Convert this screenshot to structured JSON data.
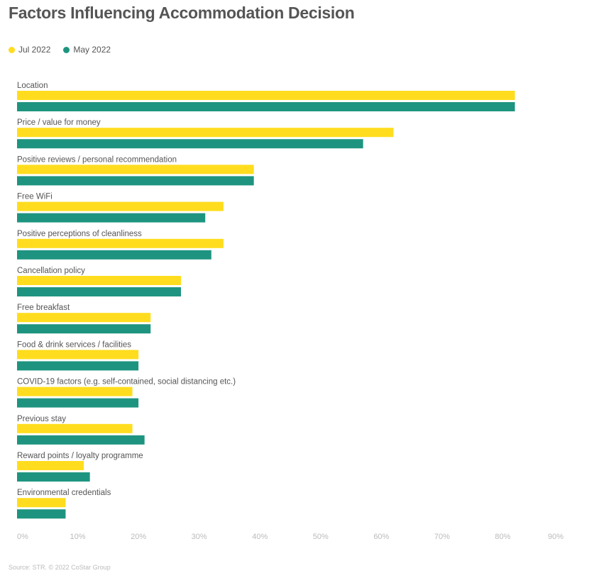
{
  "chart_data": {
    "type": "bar",
    "orientation": "horizontal",
    "title": "Factors Influencing Accommodation Decision",
    "categories": [
      "Location",
      "Price / value for money",
      "Positive reviews / personal recommendation",
      "Free WiFi",
      "Positive perceptions of cleanliness",
      "Cancellation policy",
      "Free breakfast",
      "Food & drink services / facilities",
      "COVID-19 factors (e.g. self-contained, social distancing etc.)",
      "Previous stay",
      "Reward points / loyalty programme",
      "Environmental credentials"
    ],
    "series": [
      {
        "name": "Jul 2022",
        "color": "#FFDD1E",
        "values": [
          82,
          62,
          39,
          34,
          34,
          27,
          22,
          20,
          19,
          19,
          11,
          8
        ]
      },
      {
        "name": "May 2022",
        "color": "#1E9480",
        "values": [
          82,
          57,
          39,
          31,
          32,
          27,
          22,
          20,
          20,
          21,
          12,
          8
        ]
      }
    ],
    "xlim": [
      0,
      90
    ],
    "xticks": [
      "0%",
      "10%",
      "20%",
      "30%",
      "40%",
      "50%",
      "60%",
      "70%",
      "80%",
      "90%"
    ],
    "grid": false,
    "legend": "top-left"
  },
  "footer": {
    "source": "Source: STR. © 2022 CoStar Group"
  }
}
